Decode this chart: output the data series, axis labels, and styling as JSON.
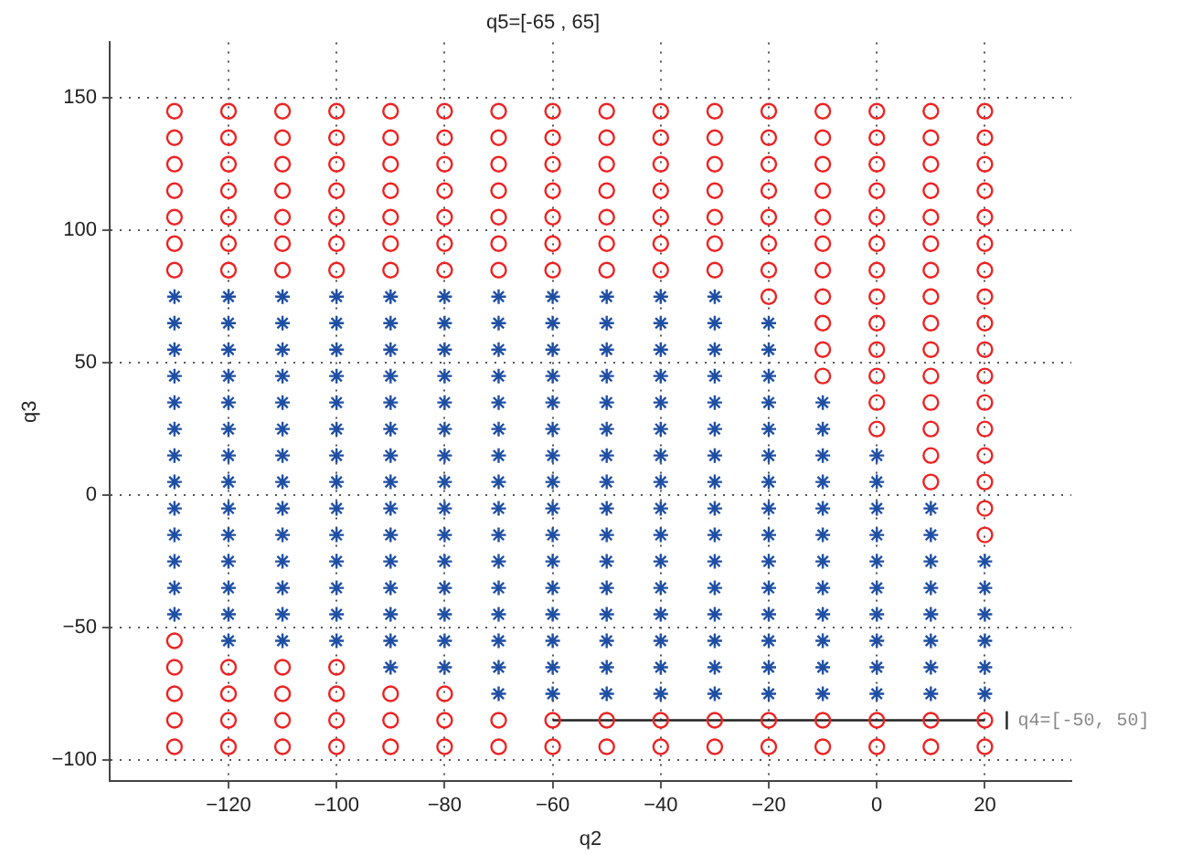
{
  "chart_data": {
    "type": "scatter",
    "title": "q5=[-65 , 65]",
    "xlabel": "q2",
    "ylabel": "q3",
    "xlim": [
      -142,
      36
    ],
    "ylim": [
      -108,
      171
    ],
    "xticks": [
      -120,
      -100,
      -80,
      -60,
      -40,
      -20,
      0,
      20
    ],
    "yticks": [
      -100,
      -50,
      0,
      50,
      100,
      150
    ],
    "grid": true,
    "legend": false,
    "annotations": [
      {
        "text": "q4=[-50, 50]",
        "x": 20,
        "y": -85
      }
    ],
    "series": [
      {
        "marker": "cross",
        "color": "#1f4fa3",
        "x": [
          -130,
          -130,
          -130,
          -130,
          -130,
          -130,
          -130,
          -130,
          -130,
          -130,
          -130,
          -130,
          -130,
          -120,
          -120,
          -120,
          -120,
          -120,
          -120,
          -120,
          -120,
          -120,
          -120,
          -120,
          -120,
          -120,
          -120,
          -110,
          -110,
          -110,
          -110,
          -110,
          -110,
          -110,
          -110,
          -110,
          -110,
          -110,
          -110,
          -110,
          -110,
          -100,
          -100,
          -100,
          -100,
          -100,
          -100,
          -100,
          -100,
          -100,
          -100,
          -100,
          -100,
          -100,
          -100,
          -90,
          -90,
          -90,
          -90,
          -90,
          -90,
          -90,
          -90,
          -90,
          -90,
          -90,
          -90,
          -90,
          -90,
          -90,
          -80,
          -80,
          -80,
          -80,
          -80,
          -80,
          -80,
          -80,
          -80,
          -80,
          -80,
          -80,
          -80,
          -80,
          -80,
          -70,
          -70,
          -70,
          -70,
          -70,
          -70,
          -70,
          -70,
          -70,
          -70,
          -70,
          -70,
          -70,
          -70,
          -70,
          -70,
          -60,
          -60,
          -60,
          -60,
          -60,
          -60,
          -60,
          -60,
          -60,
          -60,
          -60,
          -60,
          -60,
          -60,
          -60,
          -60,
          -50,
          -50,
          -50,
          -50,
          -50,
          -50,
          -50,
          -50,
          -50,
          -50,
          -50,
          -50,
          -50,
          -50,
          -50,
          -50,
          -40,
          -40,
          -40,
          -40,
          -40,
          -40,
          -40,
          -40,
          -40,
          -40,
          -40,
          -40,
          -40,
          -40,
          -40,
          -40,
          -30,
          -30,
          -30,
          -30,
          -30,
          -30,
          -30,
          -30,
          -30,
          -30,
          -30,
          -30,
          -30,
          -30,
          -30,
          -30,
          -20,
          -20,
          -20,
          -20,
          -20,
          -20,
          -20,
          -20,
          -20,
          -20,
          -20,
          -20,
          -20,
          -20,
          -20,
          -10,
          -10,
          -10,
          -10,
          -10,
          -10,
          -10,
          -10,
          -10,
          -10,
          -10,
          -10,
          0,
          0,
          0,
          0,
          0,
          0,
          0,
          0,
          0,
          0,
          10,
          10,
          10,
          10,
          10,
          10,
          10,
          10,
          20,
          20,
          20,
          20,
          20,
          20
        ],
        "values": [
          75,
          65,
          55,
          45,
          35,
          25,
          15,
          5,
          -5,
          -15,
          -25,
          -35,
          -45,
          75,
          65,
          55,
          45,
          35,
          25,
          15,
          5,
          -5,
          -15,
          -25,
          -35,
          -45,
          -55,
          75,
          65,
          55,
          45,
          35,
          25,
          15,
          5,
          -5,
          -15,
          -25,
          -35,
          -45,
          -55,
          75,
          65,
          55,
          45,
          35,
          25,
          15,
          5,
          -5,
          -15,
          -25,
          -35,
          -45,
          -55,
          75,
          65,
          55,
          45,
          35,
          25,
          15,
          5,
          -5,
          -15,
          -25,
          -35,
          -45,
          -55,
          -65,
          75,
          65,
          55,
          45,
          35,
          25,
          15,
          5,
          -5,
          -15,
          -25,
          -35,
          -45,
          -55,
          -65,
          75,
          65,
          55,
          45,
          35,
          25,
          15,
          5,
          -5,
          -15,
          -25,
          -35,
          -45,
          -55,
          -65,
          -75,
          75,
          65,
          55,
          45,
          35,
          25,
          15,
          5,
          -5,
          -15,
          -25,
          -35,
          -45,
          -55,
          -65,
          -75,
          75,
          65,
          55,
          45,
          35,
          25,
          15,
          5,
          -5,
          -15,
          -25,
          -35,
          -45,
          -55,
          -65,
          -75,
          75,
          65,
          55,
          45,
          35,
          25,
          15,
          5,
          -5,
          -15,
          -25,
          -35,
          -45,
          -55,
          -65,
          -75,
          75,
          65,
          55,
          45,
          35,
          25,
          15,
          5,
          -5,
          -15,
          -25,
          -35,
          -45,
          -55,
          -65,
          -75,
          65,
          55,
          45,
          35,
          25,
          15,
          5,
          -5,
          -15,
          -25,
          -35,
          -45,
          -55,
          -65,
          -75,
          35,
          25,
          15,
          5,
          -5,
          -15,
          -25,
          -35,
          -45,
          -55,
          -65,
          -75,
          15,
          5,
          -5,
          -15,
          -25,
          -35,
          -45,
          -55,
          -65,
          -75,
          -5,
          -15,
          -25,
          -35,
          -45,
          -55,
          -65,
          -75,
          -25,
          -35,
          -45,
          -55,
          -65,
          -75
        ]
      },
      {
        "marker": "circle",
        "color": "#ee2222",
        "x": [
          -130,
          -130,
          -130,
          -130,
          -130,
          -130,
          -130,
          -130,
          -130,
          -130,
          -130,
          -130,
          -120,
          -120,
          -120,
          -120,
          -120,
          -120,
          -120,
          -120,
          -120,
          -120,
          -120,
          -110,
          -110,
          -110,
          -110,
          -110,
          -110,
          -110,
          -110,
          -110,
          -110,
          -110,
          -100,
          -100,
          -100,
          -100,
          -100,
          -100,
          -100,
          -100,
          -100,
          -100,
          -100,
          -90,
          -90,
          -90,
          -90,
          -90,
          -90,
          -90,
          -90,
          -90,
          -90,
          -80,
          -80,
          -80,
          -80,
          -80,
          -80,
          -80,
          -80,
          -80,
          -80,
          -70,
          -70,
          -70,
          -70,
          -70,
          -70,
          -70,
          -70,
          -70,
          -60,
          -60,
          -60,
          -60,
          -60,
          -60,
          -60,
          -60,
          -60,
          -50,
          -50,
          -50,
          -50,
          -50,
          -50,
          -50,
          -50,
          -50,
          -40,
          -40,
          -40,
          -40,
          -40,
          -40,
          -40,
          -40,
          -40,
          -30,
          -30,
          -30,
          -30,
          -30,
          -30,
          -30,
          -30,
          -30,
          -20,
          -20,
          -20,
          -20,
          -20,
          -20,
          -20,
          -20,
          -20,
          -20,
          -10,
          -10,
          -10,
          -10,
          -10,
          -10,
          -10,
          -10,
          -10,
          -10,
          -10,
          -10,
          -10,
          0,
          0,
          0,
          0,
          0,
          0,
          0,
          0,
          0,
          0,
          0,
          0,
          0,
          0,
          0,
          10,
          10,
          10,
          10,
          10,
          10,
          10,
          10,
          10,
          10,
          10,
          10,
          10,
          10,
          10,
          10,
          10,
          20,
          20,
          20,
          20,
          20,
          20,
          20,
          20,
          20,
          20,
          20,
          20,
          20,
          20,
          20,
          20,
          20,
          20,
          20
        ],
        "values": [
          145,
          135,
          125,
          115,
          105,
          95,
          85,
          -55,
          -65,
          -75,
          -85,
          -95,
          145,
          135,
          125,
          115,
          105,
          95,
          85,
          -65,
          -75,
          -85,
          -95,
          145,
          135,
          125,
          115,
          105,
          95,
          85,
          -65,
          -75,
          -85,
          -95,
          145,
          135,
          125,
          115,
          105,
          95,
          85,
          -65,
          -75,
          -85,
          -95,
          145,
          135,
          125,
          115,
          105,
          95,
          85,
          -75,
          -85,
          -95,
          145,
          135,
          125,
          115,
          105,
          95,
          85,
          -75,
          -85,
          -95,
          145,
          135,
          125,
          115,
          105,
          95,
          85,
          -85,
          -95,
          145,
          135,
          125,
          115,
          105,
          95,
          85,
          -85,
          -95,
          145,
          135,
          125,
          115,
          105,
          95,
          85,
          -85,
          -95,
          145,
          135,
          125,
          115,
          105,
          95,
          85,
          -85,
          -95,
          145,
          135,
          125,
          115,
          105,
          95,
          85,
          -85,
          -95,
          145,
          135,
          125,
          115,
          105,
          95,
          85,
          75,
          -85,
          -95,
          145,
          135,
          125,
          115,
          105,
          95,
          85,
          75,
          65,
          55,
          45,
          -85,
          -95,
          145,
          135,
          125,
          115,
          105,
          95,
          85,
          75,
          65,
          55,
          45,
          35,
          25,
          -85,
          -95,
          145,
          135,
          125,
          115,
          105,
          95,
          85,
          75,
          65,
          55,
          45,
          35,
          25,
          15,
          5,
          -85,
          -95,
          145,
          135,
          125,
          115,
          105,
          95,
          85,
          75,
          65,
          55,
          45,
          35,
          25,
          15,
          5,
          -5,
          -15,
          -85,
          -95
        ]
      },
      {
        "type": "line",
        "marker": "none",
        "color": "#222222",
        "x": [
          -60,
          20
        ],
        "values": [
          -85,
          -85
        ]
      }
    ]
  }
}
